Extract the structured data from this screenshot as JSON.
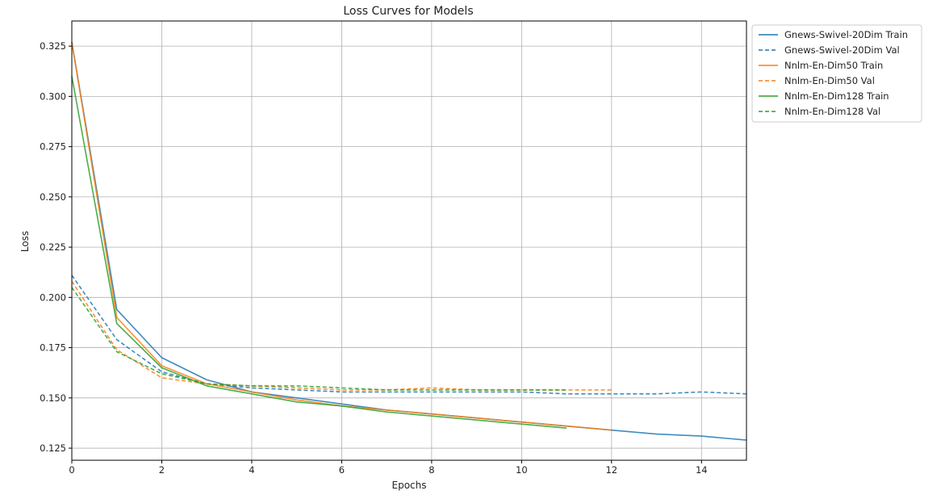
{
  "chart_data": {
    "type": "line",
    "title": "Loss Curves for Models",
    "xlabel": "Epochs",
    "ylabel": "Loss",
    "xlim": [
      0,
      15
    ],
    "ylim": [
      0.119,
      0.3375
    ],
    "xticks": [
      0,
      2,
      4,
      6,
      8,
      10,
      12,
      14
    ],
    "yticks": [
      0.125,
      0.15,
      0.175,
      0.2,
      0.225,
      0.25,
      0.275,
      0.3,
      0.325
    ],
    "xtick_labels": [
      "0",
      "2",
      "4",
      "6",
      "8",
      "10",
      "12",
      "14"
    ],
    "ytick_labels": [
      "0.125",
      "0.150",
      "0.175",
      "0.200",
      "0.225",
      "0.250",
      "0.275",
      "0.300",
      "0.325"
    ],
    "grid": true,
    "legend_position": "outside right top",
    "series": [
      {
        "name": "Gnews-Swivel-20Dim Train",
        "color": "#1f77b4",
        "style": "solid",
        "x": [
          0,
          1,
          2,
          3,
          4,
          5,
          6,
          7,
          8,
          9,
          10,
          11,
          12,
          13,
          14,
          15
        ],
        "y": [
          0.327,
          0.194,
          0.17,
          0.159,
          0.153,
          0.15,
          0.147,
          0.144,
          0.142,
          0.14,
          0.138,
          0.136,
          0.134,
          0.132,
          0.131,
          0.129
        ]
      },
      {
        "name": "Gnews-Swivel-20Dim Val",
        "color": "#1f77b4",
        "style": "dashed",
        "x": [
          0,
          1,
          2,
          3,
          4,
          5,
          6,
          7,
          8,
          9,
          10,
          11,
          12,
          13,
          14,
          15
        ],
        "y": [
          0.211,
          0.179,
          0.163,
          0.157,
          0.155,
          0.154,
          0.153,
          0.153,
          0.153,
          0.153,
          0.153,
          0.152,
          0.152,
          0.152,
          0.153,
          0.152
        ]
      },
      {
        "name": "Nnlm-En-Dim50 Train",
        "color": "#ff7f0e",
        "style": "solid",
        "x": [
          0,
          1,
          2,
          3,
          4,
          5,
          6,
          7,
          8,
          9,
          10,
          11,
          12
        ],
        "y": [
          0.327,
          0.19,
          0.166,
          0.157,
          0.153,
          0.149,
          0.146,
          0.144,
          0.142,
          0.14,
          0.138,
          0.136,
          0.134
        ]
      },
      {
        "name": "Nnlm-En-Dim50 Val",
        "color": "#ff7f0e",
        "style": "dashed",
        "x": [
          0,
          1,
          2,
          3,
          4,
          5,
          6,
          7,
          8,
          9,
          10,
          11,
          12
        ],
        "y": [
          0.208,
          0.174,
          0.16,
          0.157,
          0.156,
          0.155,
          0.154,
          0.154,
          0.155,
          0.154,
          0.154,
          0.154,
          0.154
        ]
      },
      {
        "name": "Nnlm-En-Dim128 Train",
        "color": "#2ca02c",
        "style": "solid",
        "x": [
          0,
          1,
          2,
          3,
          4,
          5,
          6,
          7,
          8,
          9,
          10,
          11
        ],
        "y": [
          0.31,
          0.187,
          0.165,
          0.156,
          0.152,
          0.148,
          0.146,
          0.143,
          0.141,
          0.139,
          0.137,
          0.135
        ]
      },
      {
        "name": "Nnlm-En-Dim128 Val",
        "color": "#2ca02c",
        "style": "dashed",
        "x": [
          0,
          1,
          2,
          3,
          4,
          5,
          6,
          7,
          8,
          9,
          10,
          11
        ],
        "y": [
          0.205,
          0.173,
          0.162,
          0.157,
          0.156,
          0.156,
          0.155,
          0.154,
          0.154,
          0.154,
          0.154,
          0.154
        ]
      }
    ]
  }
}
